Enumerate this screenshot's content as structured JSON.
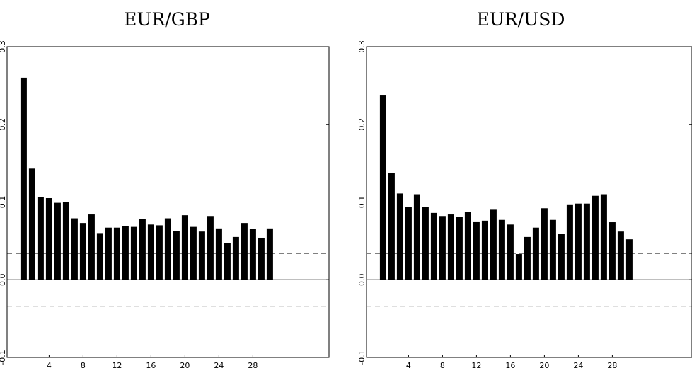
{
  "chart_data": [
    {
      "type": "bar",
      "title": "EUR/GBP",
      "x": [
        1,
        2,
        3,
        4,
        5,
        6,
        7,
        8,
        9,
        10,
        11,
        12,
        13,
        14,
        15,
        16,
        17,
        18,
        19,
        20,
        21,
        22,
        23,
        24,
        25,
        26,
        27,
        28,
        29,
        30
      ],
      "values": [
        0.26,
        0.143,
        0.106,
        0.105,
        0.099,
        0.1,
        0.079,
        0.073,
        0.084,
        0.06,
        0.067,
        0.067,
        0.069,
        0.068,
        0.078,
        0.071,
        0.07,
        0.079,
        0.063,
        0.083,
        0.068,
        0.062,
        0.082,
        0.066,
        0.047,
        0.055,
        0.073,
        0.065,
        0.054,
        0.066
      ],
      "ylim": [
        -0.1,
        0.3
      ],
      "yticks": [
        "-0.1",
        "0.0",
        "0.1",
        "0.2",
        "0.3"
      ],
      "xticks": [
        "4",
        "8",
        "12",
        "16",
        "20",
        "24",
        "28"
      ],
      "xtick_values": [
        4,
        8,
        12,
        16,
        20,
        24,
        28
      ],
      "ytick_values": [
        -0.1,
        0.0,
        0.1,
        0.2,
        0.3
      ],
      "confidence_band": [
        0.034,
        -0.034
      ]
    },
    {
      "type": "bar",
      "title": "EUR/USD",
      "x": [
        1,
        2,
        3,
        4,
        5,
        6,
        7,
        8,
        9,
        10,
        11,
        12,
        13,
        14,
        15,
        16,
        17,
        18,
        19,
        20,
        21,
        22,
        23,
        24,
        25,
        26,
        27,
        28,
        29,
        30
      ],
      "values": [
        0.238,
        0.137,
        0.111,
        0.094,
        0.11,
        0.094,
        0.086,
        0.082,
        0.084,
        0.081,
        0.087,
        0.075,
        0.076,
        0.091,
        0.077,
        0.071,
        0.033,
        0.055,
        0.067,
        0.092,
        0.077,
        0.059,
        0.097,
        0.098,
        0.098,
        0.108,
        0.11,
        0.074,
        0.062,
        0.052
      ],
      "ylim": [
        -0.1,
        0.3
      ],
      "yticks": [
        "-0.1",
        "0.0",
        "0.1",
        "0.2",
        "0.3"
      ],
      "xticks": [
        "4",
        "8",
        "12",
        "16",
        "20",
        "24",
        "28"
      ],
      "xtick_values": [
        4,
        8,
        12,
        16,
        20,
        24,
        28
      ],
      "ytick_values": [
        -0.1,
        0.0,
        0.1,
        0.2,
        0.3
      ],
      "confidence_band": [
        0.034,
        -0.034
      ]
    }
  ]
}
